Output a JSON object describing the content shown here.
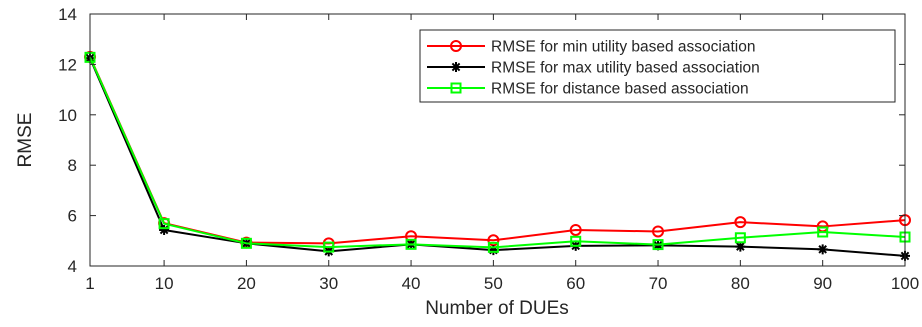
{
  "chart_data": {
    "type": "line",
    "title": "",
    "xlabel": "Number of DUEs",
    "ylabel": "RMSE",
    "x": [
      1,
      10,
      20,
      30,
      40,
      50,
      60,
      70,
      80,
      90,
      100
    ],
    "x_tick_labels": [
      "1",
      "10",
      "20",
      "30",
      "40",
      "50",
      "60",
      "70",
      "80",
      "90",
      "100"
    ],
    "y_ticks": [
      4,
      6,
      8,
      10,
      12,
      14
    ],
    "y_tick_labels": [
      "4",
      "6",
      "8",
      "10",
      "12",
      "14"
    ],
    "xlim": [
      1,
      100
    ],
    "ylim": [
      4,
      14
    ],
    "grid": false,
    "legend_position": "top-right",
    "series": [
      {
        "name": "RMSE for min utility based association",
        "color": "#ff0000",
        "marker": "circle",
        "values": [
          12.3,
          5.7,
          4.93,
          4.9,
          5.18,
          5.02,
          5.43,
          5.37,
          5.74,
          5.57,
          5.82
        ]
      },
      {
        "name": "RMSE for max utility based association",
        "color": "#000000",
        "marker": "asterisk",
        "values": [
          12.25,
          5.43,
          4.9,
          4.58,
          4.86,
          4.63,
          4.8,
          4.82,
          4.77,
          4.66,
          4.4
        ]
      },
      {
        "name": "RMSE for distance based association",
        "color": "#00ff00",
        "marker": "square",
        "values": [
          12.28,
          5.68,
          4.9,
          4.75,
          4.86,
          4.74,
          4.98,
          4.85,
          5.12,
          5.35,
          5.15
        ]
      }
    ]
  }
}
